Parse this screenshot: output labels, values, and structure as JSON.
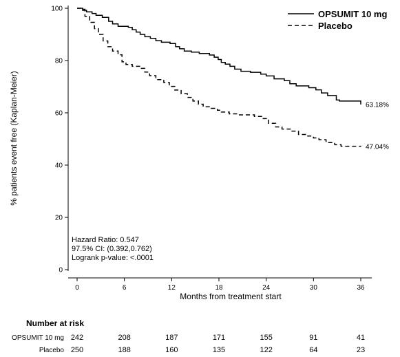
{
  "chart_data": {
    "type": "line",
    "title": "",
    "xlabel": "Months from treatment start",
    "ylabel": "% patients event free (Kaplan-Meier)",
    "xlim": [
      0,
      36
    ],
    "ylim": [
      0,
      100
    ],
    "xticks": [
      0,
      6,
      12,
      18,
      24,
      30,
      36
    ],
    "yticks": [
      0,
      20,
      40,
      60,
      80,
      100
    ],
    "grid": false,
    "legend_position": "top-right",
    "series": [
      {
        "name": "OPSUMIT 10 mg",
        "style": "solid",
        "end_label": "63.18%",
        "points": [
          [
            0,
            100
          ],
          [
            0.4,
            100
          ],
          [
            0.7,
            99.2
          ],
          [
            1.2,
            98.6
          ],
          [
            1.9,
            98
          ],
          [
            2.4,
            97.3
          ],
          [
            3.2,
            96.5
          ],
          [
            4,
            95
          ],
          [
            4.5,
            94
          ],
          [
            5.2,
            93.1
          ],
          [
            6.5,
            92.7
          ],
          [
            7,
            91.8
          ],
          [
            7.5,
            90.9
          ],
          [
            8,
            90
          ],
          [
            8.6,
            89.1
          ],
          [
            9.3,
            88.5
          ],
          [
            10,
            87.6
          ],
          [
            10.7,
            87
          ],
          [
            11.8,
            86.5
          ],
          [
            12.5,
            85.3
          ],
          [
            13,
            84.5
          ],
          [
            13.6,
            83.6
          ],
          [
            14.5,
            83.2
          ],
          [
            15.5,
            82.7
          ],
          [
            16.8,
            82.1
          ],
          [
            17.4,
            81.3
          ],
          [
            17.9,
            80.4
          ],
          [
            18.3,
            79.3
          ],
          [
            18.8,
            78.6
          ],
          [
            19.4,
            77.8
          ],
          [
            20,
            76.7
          ],
          [
            20.8,
            75.9
          ],
          [
            22,
            75.5
          ],
          [
            23.3,
            74.8
          ],
          [
            24,
            74.1
          ],
          [
            25,
            73
          ],
          [
            26.3,
            72.3
          ],
          [
            27,
            71.1
          ],
          [
            27.8,
            70.3
          ],
          [
            29.4,
            69.6
          ],
          [
            30.3,
            68.8
          ],
          [
            31,
            67.6
          ],
          [
            31.8,
            66.6
          ],
          [
            32.9,
            64.9
          ],
          [
            33.3,
            64.5
          ],
          [
            36,
            63.18
          ]
        ]
      },
      {
        "name": "Placebo",
        "style": "dashed",
        "end_label": "47.04%",
        "points": [
          [
            0,
            100
          ],
          [
            0.5,
            99.6
          ],
          [
            1,
            96.9
          ],
          [
            1.6,
            94.6
          ],
          [
            2.2,
            92.2
          ],
          [
            2.7,
            90
          ],
          [
            3.3,
            87.5
          ],
          [
            3.9,
            85.3
          ],
          [
            4.5,
            83.6
          ],
          [
            5.2,
            82.2
          ],
          [
            5.7,
            79.5
          ],
          [
            6.2,
            78.5
          ],
          [
            7,
            77.8
          ],
          [
            8,
            77
          ],
          [
            8.6,
            75.6
          ],
          [
            9.2,
            74.2
          ],
          [
            10,
            72.7
          ],
          [
            11,
            71.6
          ],
          [
            11.7,
            70.1
          ],
          [
            12.4,
            68.7
          ],
          [
            13.2,
            67.3
          ],
          [
            14,
            65.9
          ],
          [
            14.7,
            64.5
          ],
          [
            15.4,
            63.3
          ],
          [
            16,
            62.3
          ],
          [
            17,
            61.7
          ],
          [
            17.8,
            61
          ],
          [
            18.3,
            60.3
          ],
          [
            19.3,
            59.6
          ],
          [
            20.5,
            59.2
          ],
          [
            22.5,
            58.6
          ],
          [
            23.5,
            57.8
          ],
          [
            24.3,
            56
          ],
          [
            25.2,
            54.6
          ],
          [
            26,
            53.8
          ],
          [
            27.2,
            53
          ],
          [
            28.1,
            51.7
          ],
          [
            29.1,
            51.1
          ],
          [
            30,
            50.4
          ],
          [
            30.7,
            49.7
          ],
          [
            31.6,
            48.6
          ],
          [
            32.7,
            47.8
          ],
          [
            33.5,
            47.2
          ],
          [
            36,
            47.04
          ]
        ]
      }
    ],
    "annotations": [
      "Hazard Ratio: 0.547",
      "97.5% CI: (0.392,0.762)",
      "Logrank p-value: <.0001"
    ]
  },
  "risk_table": {
    "title": "Number at risk",
    "rows": [
      {
        "label": "OPSUMIT 10 mg",
        "values": [
          242,
          208,
          187,
          171,
          155,
          91,
          41
        ]
      },
      {
        "label": "Placebo",
        "values": [
          250,
          188,
          160,
          135,
          122,
          64,
          23
        ]
      }
    ]
  }
}
